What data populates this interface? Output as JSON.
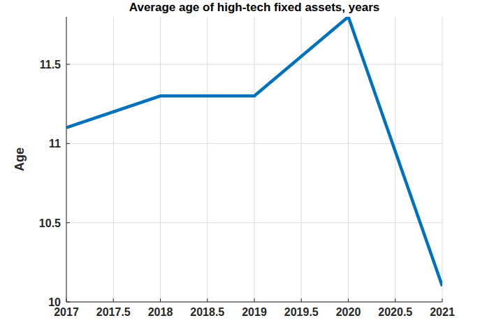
{
  "chart_data": {
    "type": "line",
    "title": "Average age of high-tech fixed assets, years",
    "y_label": "Age",
    "x": [
      2017,
      2018,
      2019,
      2020,
      2021
    ],
    "values": [
      11.1,
      11.3,
      11.3,
      11.8,
      10.1
    ],
    "color": "#0072bd",
    "xlim": [
      2017,
      2021
    ],
    "xticks": [
      2017,
      2017.5,
      2018,
      2018.5,
      2019,
      2019.5,
      2020,
      2020.5,
      2021
    ],
    "ylim": [
      10,
      11.8
    ],
    "yticks": [
      10,
      10.5,
      11,
      11.5
    ],
    "grid": true
  }
}
